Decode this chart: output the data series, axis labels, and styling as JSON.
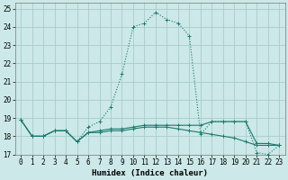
{
  "xlabel": "Humidex (Indice chaleur)",
  "bg_color": "#cce8e8",
  "grid_color": "#aacccc",
  "line_color": "#1a7a6e",
  "xlim": [
    -0.5,
    23.5
  ],
  "ylim": [
    17.0,
    25.3
  ],
  "yticks": [
    17,
    18,
    19,
    20,
    21,
    22,
    23,
    24,
    25
  ],
  "xticks": [
    0,
    1,
    2,
    3,
    4,
    5,
    6,
    7,
    8,
    9,
    10,
    11,
    12,
    13,
    14,
    15,
    16,
    17,
    18,
    19,
    20,
    21,
    22,
    23
  ],
  "series": [
    {
      "x": [
        0,
        1,
        2,
        3,
        4,
        5,
        6,
        7,
        8,
        9,
        10,
        11,
        12,
        13,
        14,
        15,
        16,
        17,
        18,
        19,
        20,
        21,
        22,
        23
      ],
      "y": [
        18.9,
        18.0,
        18.0,
        18.3,
        18.3,
        17.7,
        18.5,
        18.8,
        19.6,
        21.4,
        24.0,
        24.2,
        24.8,
        24.4,
        24.2,
        23.5,
        18.1,
        18.8,
        18.8,
        18.8,
        18.8,
        17.1,
        17.0,
        17.5
      ],
      "linestyle": ":",
      "linewidth": 0.8
    },
    {
      "x": [
        0,
        1,
        2,
        3,
        4,
        5,
        6,
        7,
        8,
        9,
        10,
        11,
        12,
        13,
        14,
        15,
        16,
        17,
        18,
        19,
        20,
        21,
        22,
        23
      ],
      "y": [
        18.9,
        18.0,
        18.0,
        18.3,
        18.3,
        17.7,
        18.2,
        18.2,
        18.3,
        18.3,
        18.4,
        18.5,
        18.5,
        18.5,
        18.4,
        18.3,
        18.2,
        18.1,
        18.0,
        17.9,
        17.7,
        17.5,
        17.5,
        17.5
      ],
      "linestyle": "-",
      "linewidth": 0.8
    },
    {
      "x": [
        0,
        1,
        2,
        3,
        4,
        5,
        6,
        7,
        8,
        9,
        10,
        11,
        12,
        13,
        14,
        15,
        16,
        17,
        18,
        19,
        20,
        21,
        22,
        23
      ],
      "y": [
        18.9,
        18.0,
        18.0,
        18.3,
        18.3,
        17.7,
        18.2,
        18.3,
        18.4,
        18.4,
        18.5,
        18.6,
        18.6,
        18.6,
        18.6,
        18.6,
        18.6,
        18.8,
        18.8,
        18.8,
        18.8,
        17.6,
        17.6,
        17.5
      ],
      "linestyle": "-",
      "linewidth": 0.8
    }
  ]
}
